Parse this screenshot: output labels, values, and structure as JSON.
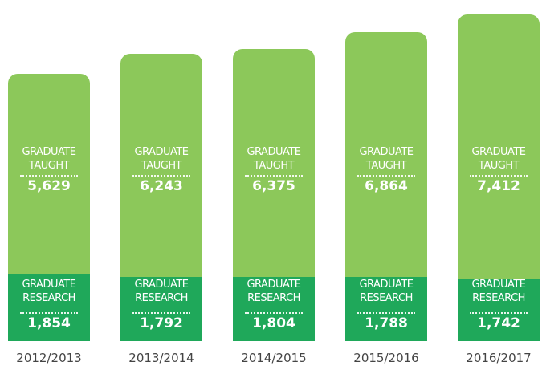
{
  "chart_data": {
    "type": "stacked-bar",
    "categories": [
      "2012/2013",
      "2013/2014",
      "2014/2015",
      "2015/2016",
      "2016/2017"
    ],
    "series": [
      {
        "name": "GRADUATE RESEARCH",
        "color": "#1fa85a",
        "values": [
          1854,
          1792,
          1804,
          1788,
          1742
        ],
        "value_labels": [
          "1,854",
          "1,792",
          "1,804",
          "1,788",
          "1,742"
        ]
      },
      {
        "name": "GRADUATE TAUGHT",
        "color": "#8cc85a",
        "values": [
          5629,
          6243,
          6375,
          6864,
          7412
        ],
        "value_labels": [
          "5,629",
          "6,243",
          "6,375",
          "6,864",
          "7,412"
        ]
      }
    ]
  }
}
